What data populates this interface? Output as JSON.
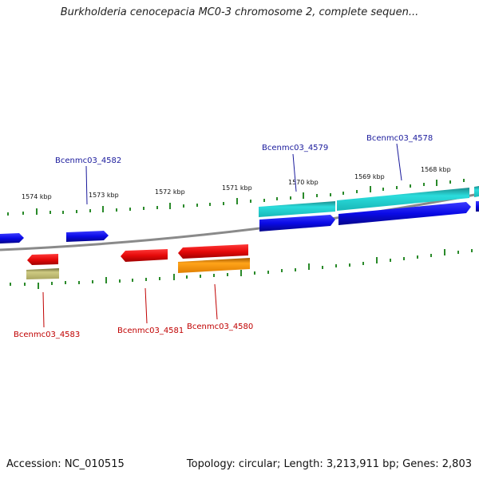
{
  "title": "Burkholderia cenocepacia MC0-3 chromosome 2, complete sequen...",
  "footer": {
    "accession": "Accession: NC_010515",
    "summary": "Topology: circular; Length: 3,213,911 bp; Genes: 2,803"
  },
  "scale_labels": [
    "1574 kbp",
    "1573 kbp",
    "1572 kbp",
    "1571 kbp",
    "1570 kbp",
    "1569 kbp",
    "1568 kbp"
  ],
  "gene_labels_top": [
    "Bcenmc03_4582",
    "Bcenmc03_4579",
    "Bcenmc03_4578"
  ],
  "gene_labels_bottom": [
    "Bcenmc03_4583",
    "Bcenmc03_4581",
    "Bcenmc03_4580"
  ],
  "colors": {
    "backbone": "#808080",
    "tick": "#2a8a2a",
    "cds_forward": "#0a0ae6",
    "cds_reverse": "#e60a0a",
    "gene_forward": "#21c4c4",
    "gene_reverse": "#f0900c",
    "other": "#b8b46a"
  }
}
